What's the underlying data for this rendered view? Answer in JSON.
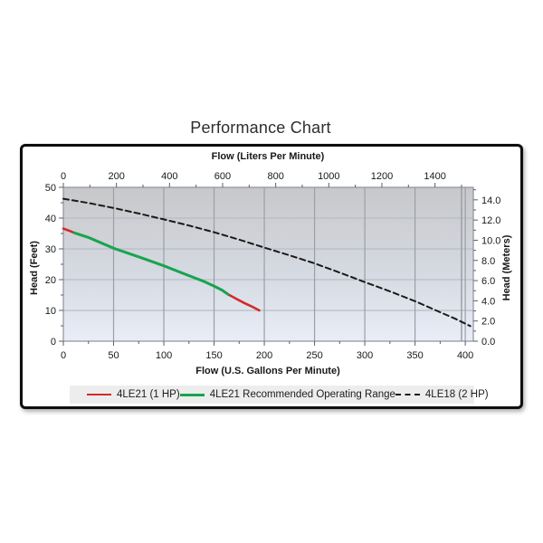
{
  "title": "Performance Chart",
  "chart_data": {
    "type": "line",
    "title": "Performance Chart",
    "x_bottom": {
      "label": "Flow (U.S. Gallons Per Minute)",
      "min": 0,
      "max": 408,
      "major_ticks": [
        0,
        50,
        100,
        150,
        200,
        250,
        300,
        350,
        400
      ],
      "minor_step": 25,
      "minor_max": 400,
      "gridline_step": 50
    },
    "x_top": {
      "label": "Flow (Liters Per Minute)",
      "min": 0,
      "max": 1544,
      "major_ticks": [
        0,
        200,
        400,
        600,
        800,
        1000,
        1200,
        1400
      ],
      "minor_step": 100,
      "minor_max": 1500,
      "gpm_per_unit": 0.264172,
      "extra_gridline_at": 1500
    },
    "y_left": {
      "label": "Head (Feet)",
      "min": 0,
      "max": 50,
      "major_ticks": [
        0,
        10,
        20,
        30,
        40,
        50
      ],
      "minor_step": 5,
      "minor_max": 50,
      "gridline_step": 10
    },
    "y_right": {
      "label": "Head (Meters)",
      "min": 0,
      "max": 15,
      "major_ticks": [
        0.0,
        2.0,
        4.0,
        6.0,
        8.0,
        10.0,
        12.0,
        14.0
      ],
      "minor_step": 1,
      "minor_max": 15,
      "feet_per_unit": 3.28084,
      "decimals": 1
    },
    "series": [
      {
        "name": "4LE21 (1 HP)",
        "color": "#d22a2a",
        "dash": "none",
        "width": 2.6,
        "points": [
          [
            0,
            36.6
          ],
          [
            5,
            36.0
          ],
          [
            11,
            35.2
          ],
          [
            25,
            33.7
          ],
          [
            50,
            30.2
          ],
          [
            75,
            27.4
          ],
          [
            100,
            24.5
          ],
          [
            125,
            21.3
          ],
          [
            140,
            19.4
          ],
          [
            150,
            17.9
          ],
          [
            158,
            16.6
          ],
          [
            164,
            15.2
          ],
          [
            172,
            13.8
          ],
          [
            180,
            12.4
          ],
          [
            188,
            11.2
          ],
          [
            195,
            10.0
          ]
        ]
      },
      {
        "name": "4LE21 Recommended Operating Range",
        "color": "#17a54f",
        "dash": "none",
        "width": 3,
        "points": [
          [
            11,
            35.2
          ],
          [
            25,
            33.7
          ],
          [
            50,
            30.2
          ],
          [
            75,
            27.4
          ],
          [
            100,
            24.5
          ],
          [
            125,
            21.3
          ],
          [
            140,
            19.4
          ],
          [
            150,
            17.9
          ],
          [
            158,
            16.6
          ],
          [
            164,
            15.2
          ]
        ]
      },
      {
        "name": "4LE18 (2 HP)",
        "color": "#1a1a1a",
        "dash": "6,4",
        "width": 2,
        "points": [
          [
            0,
            46.3
          ],
          [
            25,
            44.9
          ],
          [
            50,
            43.3
          ],
          [
            75,
            41.5
          ],
          [
            100,
            39.6
          ],
          [
            125,
            37.6
          ],
          [
            150,
            35.4
          ],
          [
            175,
            33.0
          ],
          [
            200,
            30.4
          ],
          [
            225,
            27.9
          ],
          [
            250,
            25.3
          ],
          [
            275,
            22.3
          ],
          [
            300,
            19.2
          ],
          [
            325,
            16.2
          ],
          [
            350,
            13.0
          ],
          [
            375,
            9.4
          ],
          [
            390,
            7.3
          ],
          [
            405,
            4.9
          ]
        ]
      }
    ],
    "plot_style": {
      "bg_gradient_top": "#c8c8ca",
      "bg_gradient_mid": "#d5d9e1",
      "bg_gradient_bottom": "#e9edf7",
      "grid_vertical_color": "#9aa0a6",
      "grid_horizontal_color": "#b7bcc6",
      "plot_border_color": "#8d939b",
      "tick_color": "#5a5f66"
    }
  },
  "legend": {
    "background": "#ededed",
    "items": [
      {
        "label": "4LE21 (1 HP)",
        "color": "#d22a2a",
        "style": "solid"
      },
      {
        "label": "4LE21 Recommended Operating Range",
        "color": "#17a54f",
        "style": "solid"
      },
      {
        "label": "4LE18 (2 HP)",
        "color": "#1a1a1a",
        "style": "dashed"
      }
    ]
  }
}
